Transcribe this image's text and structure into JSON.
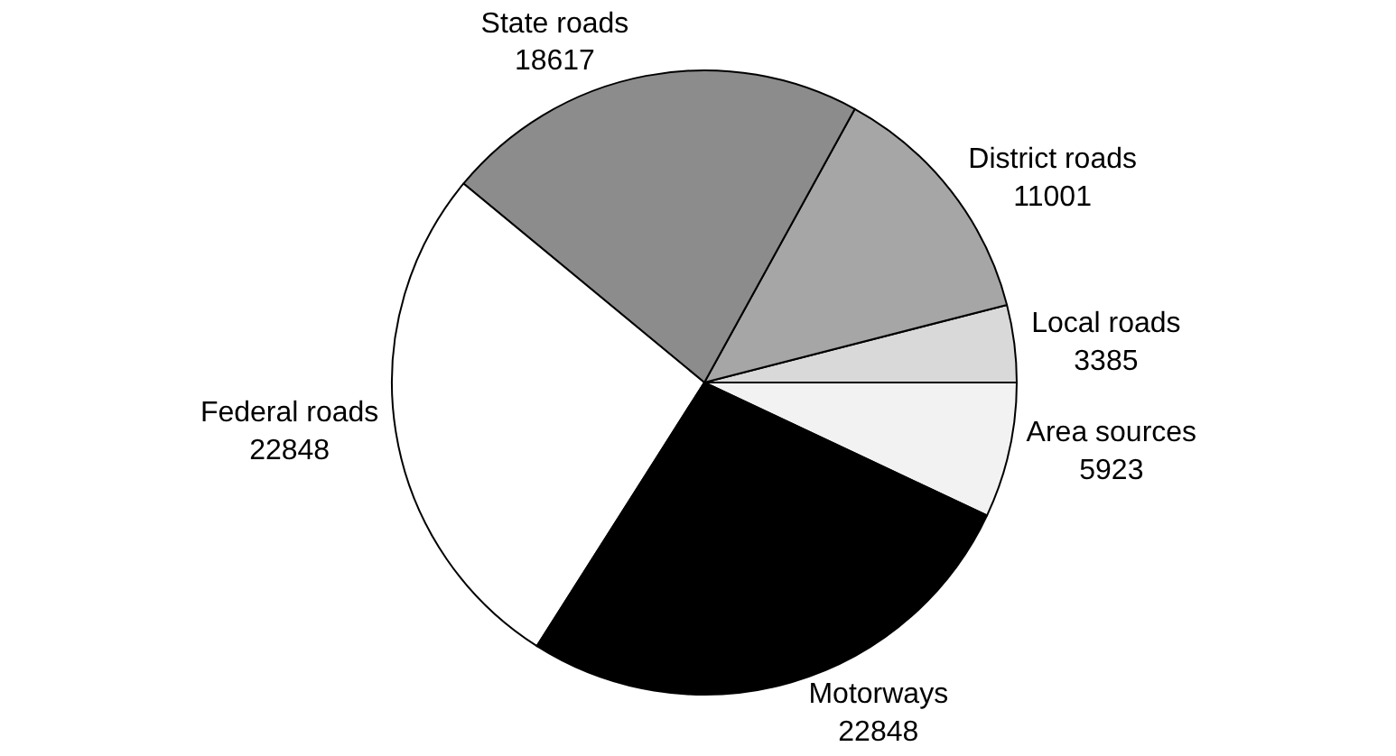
{
  "chart_data": {
    "type": "pie",
    "categories": [
      "Area sources",
      "Local roads",
      "District roads",
      "State roads",
      "Federal roads",
      "Motorways"
    ],
    "values": [
      5923,
      3385,
      11001,
      18617,
      22848,
      22848
    ],
    "colors": [
      "#f2f2f2",
      "#d9d9d9",
      "#a6a6a6",
      "#8c8c8c",
      "#ffffff",
      "#000000"
    ],
    "data_labels": true,
    "legend": false
  }
}
